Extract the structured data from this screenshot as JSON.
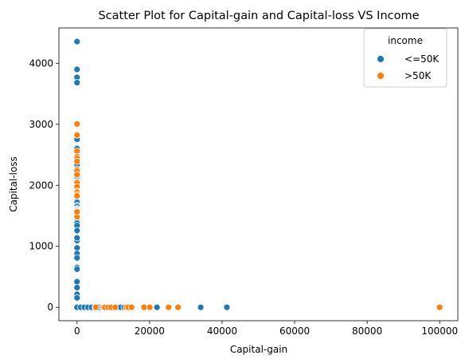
{
  "chart_data": {
    "type": "scatter",
    "title": "Scatter Plot for Capital-gain and Capital-loss VS Income",
    "xlabel": "Capital-gain",
    "ylabel": "Capital-loss",
    "xlim": [
      -5000,
      105000
    ],
    "ylim": [
      -220,
      4580
    ],
    "xticks": [
      0,
      20000,
      40000,
      60000,
      80000,
      100000
    ],
    "yticks": [
      0,
      1000,
      2000,
      3000,
      4000
    ],
    "grid": false,
    "legend": {
      "title": "income",
      "placement": "top-right"
    },
    "series": [
      {
        "name": "<=50K",
        "color": "#1f77b4",
        "points": [
          [
            0,
            4356
          ],
          [
            0,
            3900
          ],
          [
            0,
            3770
          ],
          [
            0,
            3683
          ],
          [
            0,
            2754
          ],
          [
            0,
            2603
          ],
          [
            0,
            2547
          ],
          [
            0,
            2457
          ],
          [
            0,
            2415
          ],
          [
            0,
            2377
          ],
          [
            0,
            2352
          ],
          [
            0,
            2339
          ],
          [
            0,
            2258
          ],
          [
            0,
            2206
          ],
          [
            0,
            2179
          ],
          [
            0,
            2149
          ],
          [
            0,
            2129
          ],
          [
            0,
            2080
          ],
          [
            0,
            2057
          ],
          [
            0,
            2042
          ],
          [
            0,
            2001
          ],
          [
            0,
            1980
          ],
          [
            0,
            1944
          ],
          [
            0,
            1902
          ],
          [
            0,
            1876
          ],
          [
            0,
            1844
          ],
          [
            0,
            1816
          ],
          [
            0,
            1762
          ],
          [
            0,
            1740
          ],
          [
            0,
            1721
          ],
          [
            0,
            1669
          ],
          [
            0,
            1651
          ],
          [
            0,
            1617
          ],
          [
            0,
            1602
          ],
          [
            0,
            1594
          ],
          [
            0,
            1579
          ],
          [
            0,
            1573
          ],
          [
            0,
            1564
          ],
          [
            0,
            1539
          ],
          [
            0,
            1504
          ],
          [
            0,
            1485
          ],
          [
            0,
            1411
          ],
          [
            0,
            1408
          ],
          [
            0,
            1380
          ],
          [
            0,
            1340
          ],
          [
            0,
            1258
          ],
          [
            0,
            1092
          ],
          [
            0,
            1138
          ],
          [
            0,
            974
          ],
          [
            0,
            880
          ],
          [
            0,
            810
          ],
          [
            0,
            653
          ],
          [
            0,
            625
          ],
          [
            0,
            419
          ],
          [
            0,
            323
          ],
          [
            0,
            213
          ],
          [
            0,
            155
          ],
          [
            0,
            0
          ],
          [
            1000,
            0
          ],
          [
            2000,
            0
          ],
          [
            3000,
            0
          ],
          [
            4000,
            0
          ],
          [
            5000,
            0
          ],
          [
            6000,
            0
          ],
          [
            7000,
            0
          ],
          [
            8000,
            0
          ],
          [
            9000,
            0
          ],
          [
            10000,
            0
          ],
          [
            11000,
            0
          ],
          [
            12000,
            0
          ],
          [
            13000,
            0
          ],
          [
            14000,
            0
          ],
          [
            15000,
            0
          ],
          [
            20000,
            0
          ],
          [
            22040,
            0
          ],
          [
            34095,
            0
          ],
          [
            41310,
            0
          ]
        ]
      },
      {
        "name": ">50K",
        "color": "#ff7f0e",
        "points": [
          [
            0,
            3004
          ],
          [
            0,
            2824
          ],
          [
            0,
            2559
          ],
          [
            0,
            2472
          ],
          [
            0,
            2444
          ],
          [
            0,
            2392
          ],
          [
            0,
            2258
          ],
          [
            0,
            2231
          ],
          [
            0,
            2174
          ],
          [
            0,
            2042
          ],
          [
            0,
            1977
          ],
          [
            0,
            1902
          ],
          [
            0,
            1887
          ],
          [
            0,
            1848
          ],
          [
            0,
            1825
          ],
          [
            0,
            1485
          ],
          [
            0,
            1564
          ],
          [
            5178,
            0
          ],
          [
            7298,
            0
          ],
          [
            7688,
            0
          ],
          [
            8614,
            0
          ],
          [
            9386,
            0
          ],
          [
            10520,
            0
          ],
          [
            13550,
            0
          ],
          [
            14084,
            0
          ],
          [
            15024,
            0
          ],
          [
            18481,
            0
          ],
          [
            20051,
            0
          ],
          [
            25236,
            0
          ],
          [
            27828,
            0
          ],
          [
            99999,
            0
          ]
        ]
      }
    ]
  }
}
